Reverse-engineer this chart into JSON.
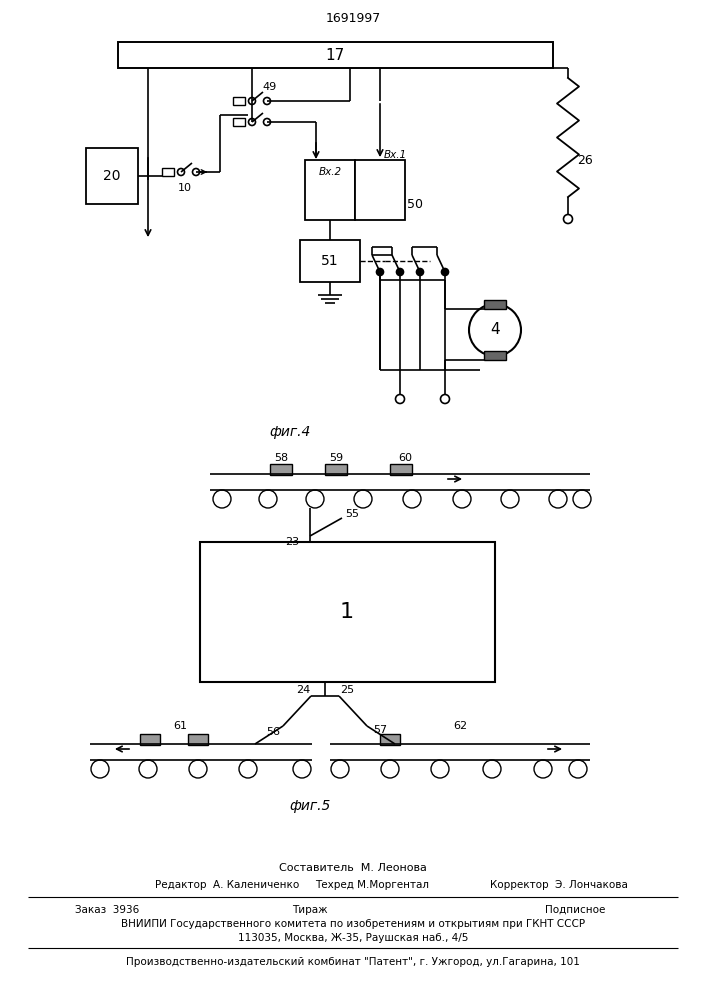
{
  "title": "1691997",
  "fig4_label": "фиг.4",
  "fig5_label": "фиг.5",
  "patent_line0": "Составитель  М. Леонова",
  "patent_line1a": "Редактор  А. Калениченко",
  "patent_line1b": "Техред М.Моргентал",
  "patent_line1c": "Корректор  Э. Лончакова",
  "patent_line2a": "Заказ  3936",
  "patent_line2b": "Тираж",
  "patent_line2c": "Подписное",
  "patent_line3": "ВНИИПИ Государственного комитета по изобретениям и открытиям при ГКНТ СССР",
  "patent_line4": "113035, Москва, Ж-35, Раушская наб., 4/5",
  "patent_line5": "Производственно-издательский комбинат \"Патент\", г. Ужгород, ул.Гагарина, 101"
}
